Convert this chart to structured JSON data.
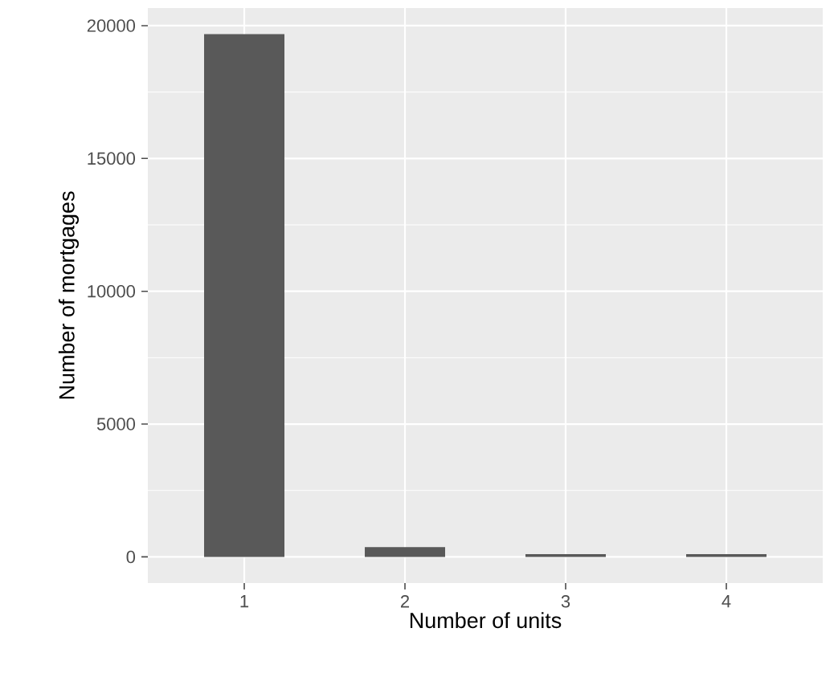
{
  "chart_data": {
    "type": "bar",
    "xlabel": "Number of units",
    "ylabel": "Number of mortgages",
    "categories": [
      "1",
      "2",
      "3",
      "4"
    ],
    "values": [
      19680,
      370,
      100,
      100
    ],
    "color": "#595959",
    "ylim": [
      -984,
      20664
    ],
    "yticks": [
      0,
      5000,
      10000,
      15000,
      20000
    ],
    "grid": true
  }
}
